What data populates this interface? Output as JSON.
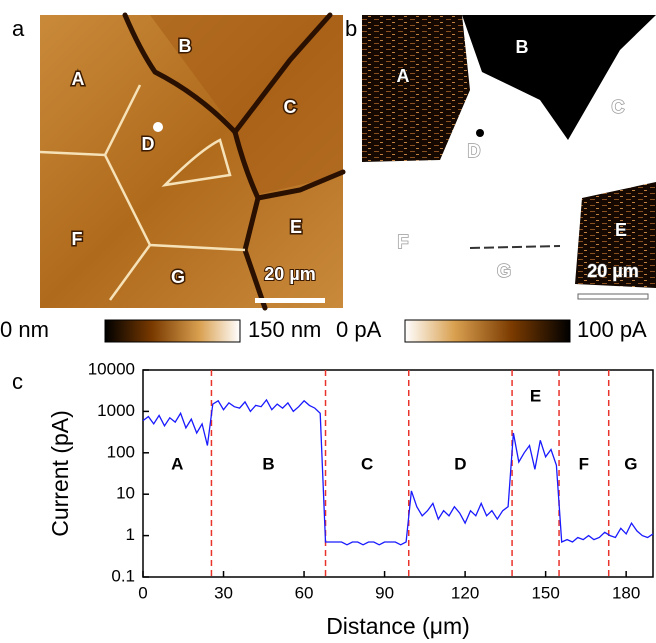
{
  "panels": [
    {
      "label": "a",
      "regions": [
        "A",
        "B",
        "C",
        "D",
        "E",
        "F",
        "G"
      ],
      "scale_bar": "20 µm",
      "colorbar_min": "0 nm",
      "colorbar_max": "150 nm"
    },
    {
      "label": "b",
      "regions": [
        "A",
        "B",
        "C",
        "D",
        "E",
        "F",
        "G"
      ],
      "scale_bar": "20 µm",
      "colorbar_min": "0 pA",
      "colorbar_max": "100 pA"
    }
  ],
  "chart_data": {
    "type": "line",
    "panel_label": "c",
    "xlabel": "Distance (μm)",
    "ylabel": "Current (pA)",
    "x": [
      0,
      2,
      4,
      6,
      8,
      10,
      12,
      14,
      16,
      18,
      20,
      22,
      24,
      26,
      28,
      30,
      32,
      34,
      36,
      38,
      40,
      42,
      44,
      46,
      48,
      50,
      52,
      54,
      56,
      58,
      60,
      62,
      64,
      66,
      68,
      70,
      72,
      74,
      76,
      78,
      80,
      82,
      84,
      86,
      88,
      90,
      92,
      94,
      96,
      98,
      100,
      102,
      104,
      106,
      108,
      110,
      112,
      114,
      116,
      118,
      120,
      122,
      124,
      126,
      128,
      130,
      132,
      134,
      136,
      138,
      140,
      142,
      144,
      146,
      148,
      150,
      152,
      154,
      156,
      158,
      160,
      162,
      164,
      166,
      168,
      170,
      172,
      174,
      176,
      178,
      180,
      182,
      184,
      186,
      188,
      190
    ],
    "values": [
      600,
      750,
      500,
      800,
      450,
      700,
      550,
      900,
      400,
      650,
      300,
      500,
      150,
      1500,
      1800,
      1100,
      1600,
      1300,
      1200,
      1700,
      1000,
      1400,
      1300,
      1900,
      1100,
      1500,
      1200,
      1600,
      1000,
      1300,
      1800,
      1400,
      1200,
      900,
      0.7,
      0.7,
      0.7,
      0.7,
      0.6,
      0.7,
      0.7,
      0.6,
      0.7,
      0.7,
      0.6,
      0.7,
      0.7,
      0.7,
      0.6,
      0.7,
      12,
      5,
      3,
      4,
      6,
      2.5,
      4,
      3,
      5,
      3.5,
      2,
      4,
      3,
      6,
      3,
      4,
      2.5,
      4,
      5,
      300,
      60,
      100,
      150,
      40,
      200,
      80,
      120,
      50,
      0.7,
      0.8,
      0.7,
      0.9,
      0.8,
      1,
      0.8,
      0.9,
      1.2,
      1,
      0.9,
      1.5,
      1.1,
      2,
      1.3,
      1,
      0.9,
      1.1
    ],
    "color": "#1a1aff",
    "xlim": [
      0,
      190
    ],
    "xticks": [
      0,
      30,
      60,
      90,
      120,
      150,
      180
    ],
    "ylim": [
      0.1,
      10000
    ],
    "yticks": [
      0.1,
      1,
      10,
      100,
      1000,
      10000
    ],
    "yscale": "log",
    "dividers": [
      25.5,
      68,
      99,
      137.5,
      155,
      173.5
    ],
    "divider_color": "#e8332b",
    "regions": [
      "A",
      "B",
      "C",
      "D",
      "E",
      "F",
      "G"
    ]
  }
}
